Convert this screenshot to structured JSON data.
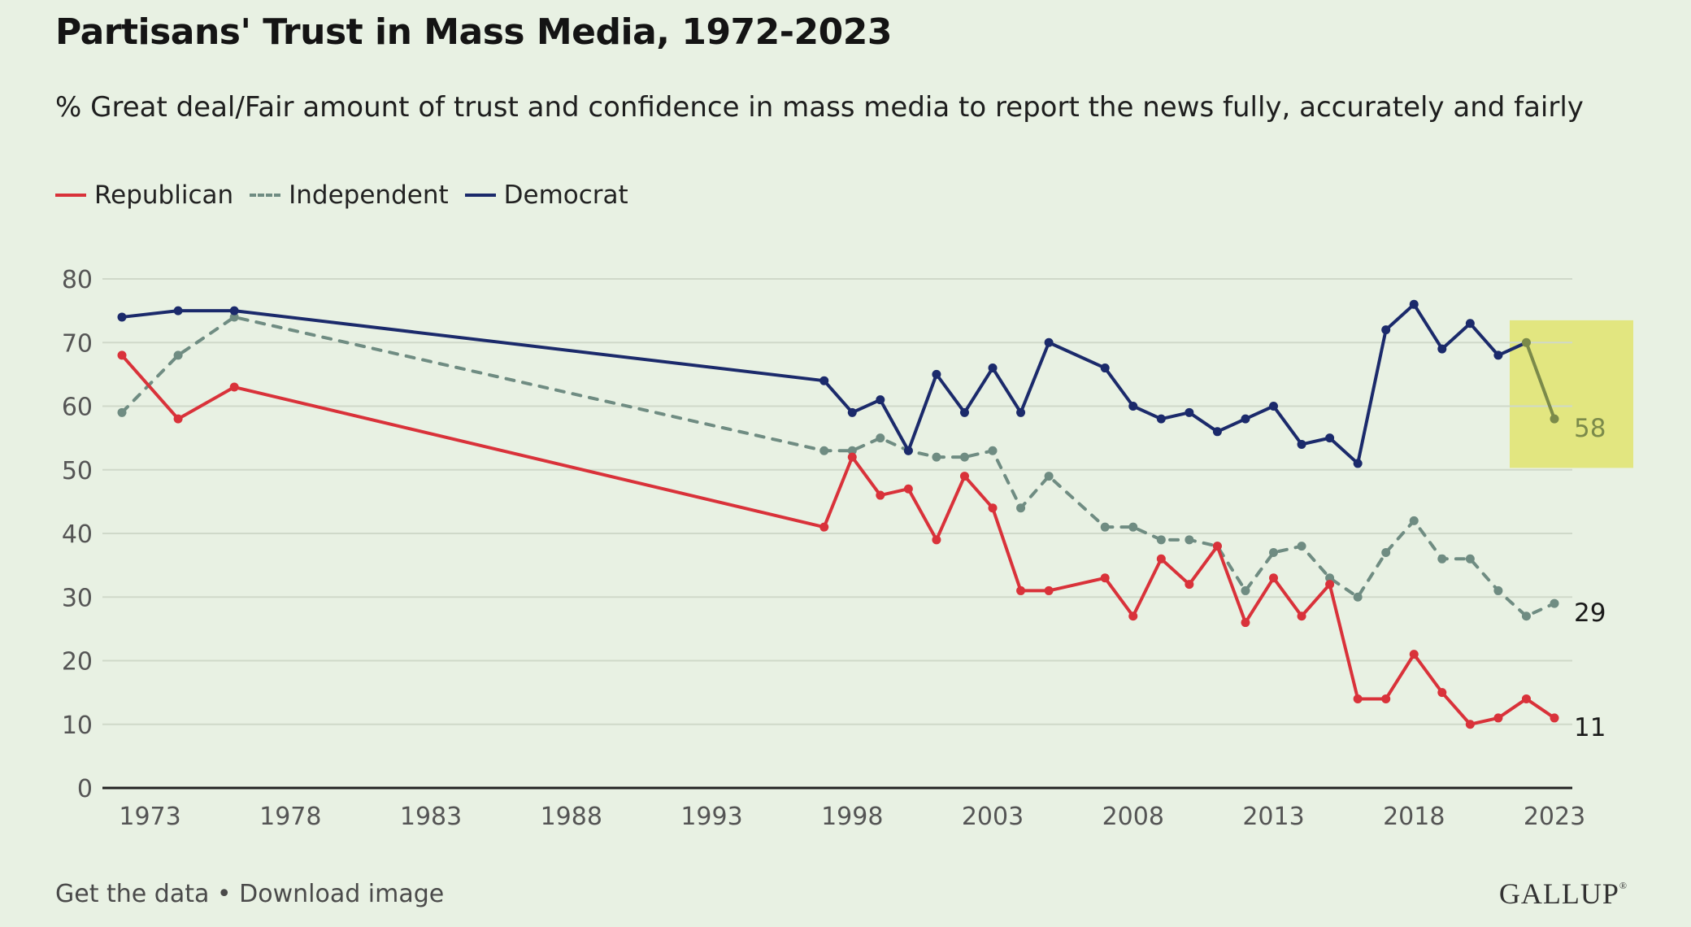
{
  "header": {
    "title": "Partisans' Trust in Mass Media, 1972-2023",
    "subtitle": "% Great deal/Fair amount of trust and confidence in mass media to report the news fully, accurately and fairly"
  },
  "footer": {
    "get_data": "Get the data",
    "separator": " • ",
    "download": "Download image",
    "logo": "GALLUP",
    "logo_mark": "®"
  },
  "chart_data": {
    "type": "line",
    "title": "Partisans' Trust in Mass Media, 1972-2023",
    "subtitle": "% Great deal/Fair amount of trust and confidence in mass media to report the news fully, accurately and fairly",
    "xlabel": "",
    "ylabel": "",
    "xlim": [
      1972,
      2023
    ],
    "ylim": [
      0,
      80
    ],
    "x_ticks": [
      1973,
      1978,
      1983,
      1988,
      1993,
      1998,
      2003,
      2008,
      2013,
      2018,
      2023
    ],
    "y_ticks": [
      0,
      10,
      20,
      30,
      40,
      50,
      60,
      70,
      80
    ],
    "grid": "horizontal",
    "legend_position": "top-left",
    "x": [
      1972,
      1974,
      1976,
      1997,
      1998,
      1999,
      2000,
      2001,
      2002,
      2003,
      2004,
      2005,
      2007,
      2008,
      2009,
      2010,
      2011,
      2012,
      2013,
      2014,
      2015,
      2016,
      2017,
      2018,
      2019,
      2020,
      2021,
      2022,
      2023
    ],
    "series": [
      {
        "name": "Republican",
        "color": "#d9323a",
        "style": "solid",
        "values": [
          68,
          58,
          63,
          41,
          52,
          46,
          47,
          39,
          49,
          44,
          31,
          31,
          33,
          27,
          36,
          32,
          38,
          26,
          33,
          27,
          32,
          14,
          14,
          21,
          15,
          10,
          11,
          14,
          11
        ],
        "end_label": "11"
      },
      {
        "name": "Independent",
        "color": "#6f8c82",
        "style": "dashed",
        "values": [
          59,
          68,
          74,
          53,
          53,
          55,
          53,
          52,
          52,
          53,
          44,
          49,
          41,
          41,
          39,
          39,
          38,
          31,
          37,
          38,
          33,
          30,
          37,
          42,
          36,
          36,
          31,
          27,
          29
        ],
        "end_label": "29"
      },
      {
        "name": "Democrat",
        "color": "#1b2a6b",
        "style": "solid",
        "values": [
          74,
          75,
          75,
          64,
          59,
          61,
          53,
          65,
          59,
          66,
          59,
          70,
          66,
          60,
          58,
          59,
          56,
          58,
          60,
          54,
          55,
          51,
          72,
          76,
          69,
          73,
          68,
          70,
          58
        ],
        "end_label": "58",
        "highlight_last_segment_color": "#7b8a4a",
        "highlight_box_color": "#e2e680"
      }
    ]
  }
}
